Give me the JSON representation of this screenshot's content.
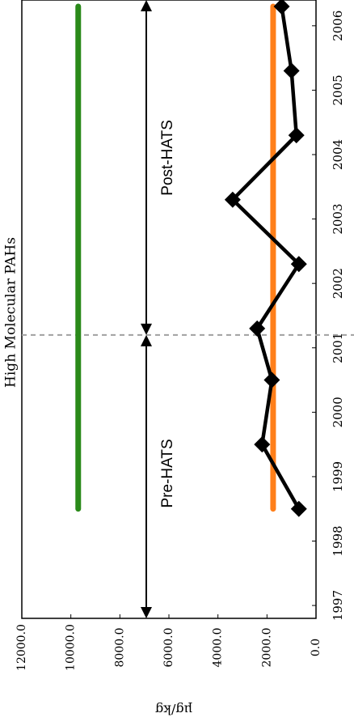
{
  "chart_data": {
    "type": "line",
    "title": "High Molecular PAHs",
    "ylabel": "µg/kg",
    "x_ticks": [
      "1997",
      "1998",
      "1999",
      "2000",
      "2001",
      "2002",
      "2003",
      "2004",
      "2005",
      "2006"
    ],
    "y_ticks": [
      "0.0",
      "2000.0",
      "4000.0",
      "6000.0",
      "8000.0",
      "10000.0",
      "12000.0"
    ],
    "xlim": [
      1996.8,
      2006.4
    ],
    "ylim": [
      0,
      12000
    ],
    "rotation": "rotated 90 degrees clockwise; value axis along bottom, year axis along right",
    "series": [
      {
        "color": "#000000",
        "marker": "diamond",
        "x": [
          1998.5,
          1999.5,
          2000.5,
          2001.3,
          2002.3,
          2003.3,
          2004.3,
          2005.3,
          2006.3
        ],
        "y": [
          700,
          2200,
          1800,
          2400,
          700,
          3400,
          800,
          1000,
          1400
        ]
      },
      {
        "color": "#2a8a1a",
        "x": [
          1998.5,
          2006.3
        ],
        "y": [
          9700,
          9700
        ]
      },
      {
        "color": "#ff7f1a",
        "x": [
          1998.5,
          2006.3
        ],
        "y": [
          1750,
          1750
        ]
      }
    ],
    "vline": {
      "x": 2001.2,
      "color": "#a0a0a0",
      "style": "dashed"
    },
    "annotations": [
      {
        "text": "Pre-HATS",
        "from": 1996.8,
        "to": 2001.2
      },
      {
        "text": "Post-HATS",
        "from": 2001.2,
        "to": 2006.4
      }
    ],
    "grid": false
  }
}
